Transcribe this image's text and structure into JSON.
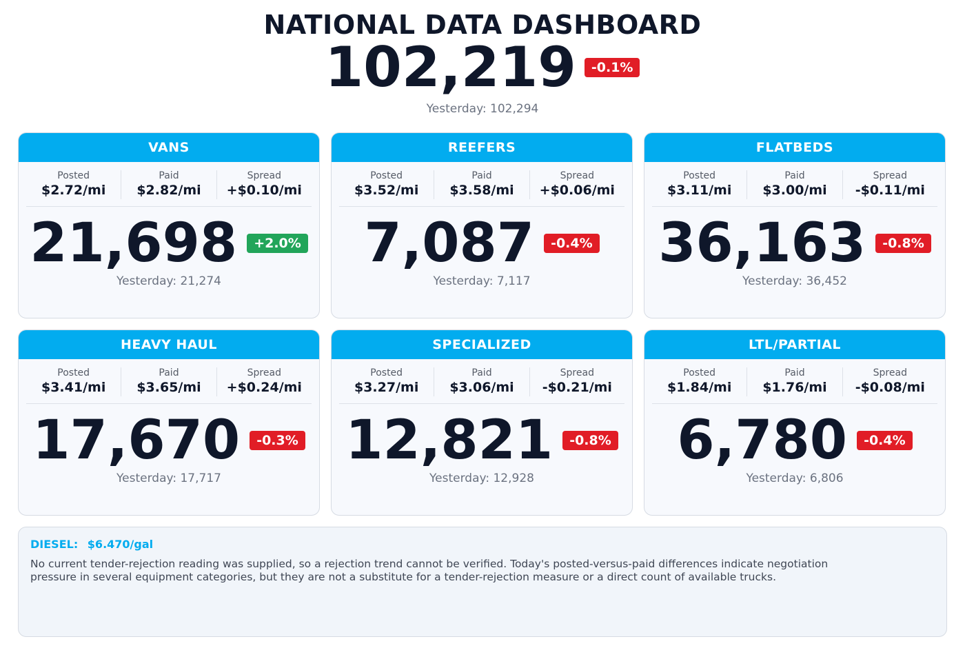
{
  "header": {
    "title": "NATIONAL DATA DASHBOARD",
    "total": "102,219",
    "change": "-0.1%",
    "change_direction": "down",
    "yesterday": "Yesterday: 102,294"
  },
  "labels": {
    "posted": "Posted",
    "paid": "Paid",
    "spread": "Spread"
  },
  "colors": {
    "header_blue": "#02acef",
    "negative_red": "#e11d26",
    "positive_green": "#22a55a"
  },
  "cards": [
    {
      "title": "VANS",
      "posted": "$2.72/mi",
      "paid": "$2.82/mi",
      "spread": "+$0.10/mi",
      "value": "21,698",
      "change": "+2.0%",
      "change_direction": "up",
      "yesterday": "Yesterday: 21,274"
    },
    {
      "title": "REEFERS",
      "posted": "$3.52/mi",
      "paid": "$3.58/mi",
      "spread": "+$0.06/mi",
      "value": "7,087",
      "change": "-0.4%",
      "change_direction": "down",
      "yesterday": "Yesterday: 7,117"
    },
    {
      "title": "FLATBEDS",
      "posted": "$3.11/mi",
      "paid": "$3.00/mi",
      "spread": "-$0.11/mi",
      "value": "36,163",
      "change": "-0.8%",
      "change_direction": "down",
      "yesterday": "Yesterday: 36,452"
    },
    {
      "title": "HEAVY HAUL",
      "posted": "$3.41/mi",
      "paid": "$3.65/mi",
      "spread": "+$0.24/mi",
      "value": "17,670",
      "change": "-0.3%",
      "change_direction": "down",
      "yesterday": "Yesterday: 17,717"
    },
    {
      "title": "SPECIALIZED",
      "posted": "$3.27/mi",
      "paid": "$3.06/mi",
      "spread": "-$0.21/mi",
      "value": "12,821",
      "change": "-0.8%",
      "change_direction": "down",
      "yesterday": "Yesterday: 12,928"
    },
    {
      "title": "LTL/PARTIAL",
      "posted": "$1.84/mi",
      "paid": "$1.76/mi",
      "spread": "-$0.08/mi",
      "value": "6,780",
      "change": "-0.4%",
      "change_direction": "down",
      "yesterday": "Yesterday: 6,806"
    }
  ],
  "footer": {
    "diesel_label": "DIESEL:",
    "diesel_value": "$6.470/gal",
    "note": "No current tender-rejection reading was supplied, so a rejection trend cannot be verified. Today's posted-versus-paid differences indicate negotiation pressure in several equipment categories, but they are not a substitute for a tender-rejection measure or a direct count of available trucks."
  }
}
